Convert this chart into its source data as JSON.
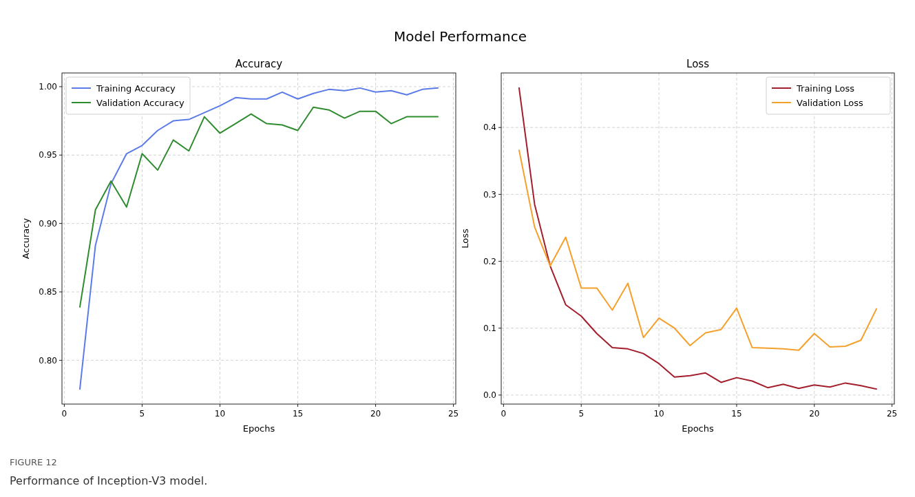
{
  "chart_data": [
    {
      "type": "line",
      "title": "Accuracy",
      "xlabel": "Epochs",
      "ylabel": "Accuracy",
      "x": [
        1,
        2,
        3,
        4,
        5,
        6,
        7,
        8,
        9,
        10,
        11,
        12,
        13,
        14,
        15,
        16,
        17,
        18,
        19,
        20,
        21,
        22,
        23,
        24
      ],
      "series": [
        {
          "name": "Training Accuracy",
          "color": "#5b7be8",
          "values": [
            0.779,
            0.884,
            0.929,
            0.951,
            0.957,
            0.968,
            0.975,
            0.976,
            0.981,
            0.986,
            0.992,
            0.991,
            0.991,
            0.996,
            0.991,
            0.995,
            0.998,
            0.997,
            0.999,
            0.996,
            0.997,
            0.994,
            0.998,
            0.999
          ]
        },
        {
          "name": "Validation Accuracy",
          "color": "#2e8b2e",
          "values": [
            0.839,
            0.91,
            0.931,
            0.912,
            0.951,
            0.939,
            0.961,
            0.953,
            0.978,
            0.966,
            0.973,
            0.98,
            0.973,
            0.972,
            0.968,
            0.985,
            0.983,
            0.977,
            0.982,
            0.982,
            0.973,
            0.978,
            0.978,
            0.978
          ]
        }
      ],
      "xlim": [
        -0.15,
        25.15
      ],
      "xticks": [
        0,
        5,
        10,
        15,
        20,
        25
      ],
      "ylim": [
        0.768,
        1.01
      ],
      "yticks": [
        {
          "value": 0.8,
          "label": "0.80"
        },
        {
          "value": 0.85,
          "label": "0.85"
        },
        {
          "value": 0.9,
          "label": "0.90"
        },
        {
          "value": 0.95,
          "label": "0.95"
        },
        {
          "value": 1.0,
          "label": "1.00"
        }
      ],
      "grid": true,
      "legend": "top left",
      "marker": "none",
      "line_style": "solid",
      "annotations": [
        "Model Performance",
        "FIGURE 12",
        "Performance of Inception-V3 model."
      ]
    },
    {
      "type": "line",
      "title": "Loss",
      "xlabel": "Epochs",
      "ylabel": "Loss",
      "x": [
        1,
        2,
        3,
        4,
        5,
        6,
        7,
        8,
        9,
        10,
        11,
        12,
        13,
        14,
        15,
        16,
        17,
        18,
        19,
        20,
        21,
        22,
        23,
        24
      ],
      "series": [
        {
          "name": "Training Loss",
          "color": "#a31d2b",
          "values": [
            0.459,
            0.285,
            0.193,
            0.135,
            0.118,
            0.092,
            0.071,
            0.069,
            0.062,
            0.047,
            0.027,
            0.029,
            0.033,
            0.019,
            0.026,
            0.021,
            0.011,
            0.016,
            0.01,
            0.015,
            0.012,
            0.018,
            0.014,
            0.009
          ]
        },
        {
          "name": "Validation Loss",
          "color": "#f5a02a",
          "values": [
            0.366,
            0.251,
            0.193,
            0.236,
            0.16,
            0.16,
            0.127,
            0.167,
            0.086,
            0.115,
            0.1,
            0.074,
            0.093,
            0.098,
            0.13,
            0.071,
            0.07,
            0.069,
            0.067,
            0.092,
            0.072,
            0.073,
            0.082,
            0.129
          ]
        }
      ],
      "xlim": [
        -0.15,
        25.15
      ],
      "xticks": [
        0,
        5,
        10,
        15,
        20,
        25
      ],
      "ylim": [
        -0.0135,
        0.4815
      ],
      "yticks": [
        {
          "value": 0,
          "label": "0.0"
        },
        {
          "value": 0.1,
          "label": "0.1"
        },
        {
          "value": 0.2,
          "label": "0.2"
        },
        {
          "value": 0.3,
          "label": "0.3"
        },
        {
          "value": 0.4,
          "label": "0.4"
        }
      ],
      "grid": true,
      "legend": "top right",
      "marker": "none",
      "line_style": "solid"
    }
  ]
}
